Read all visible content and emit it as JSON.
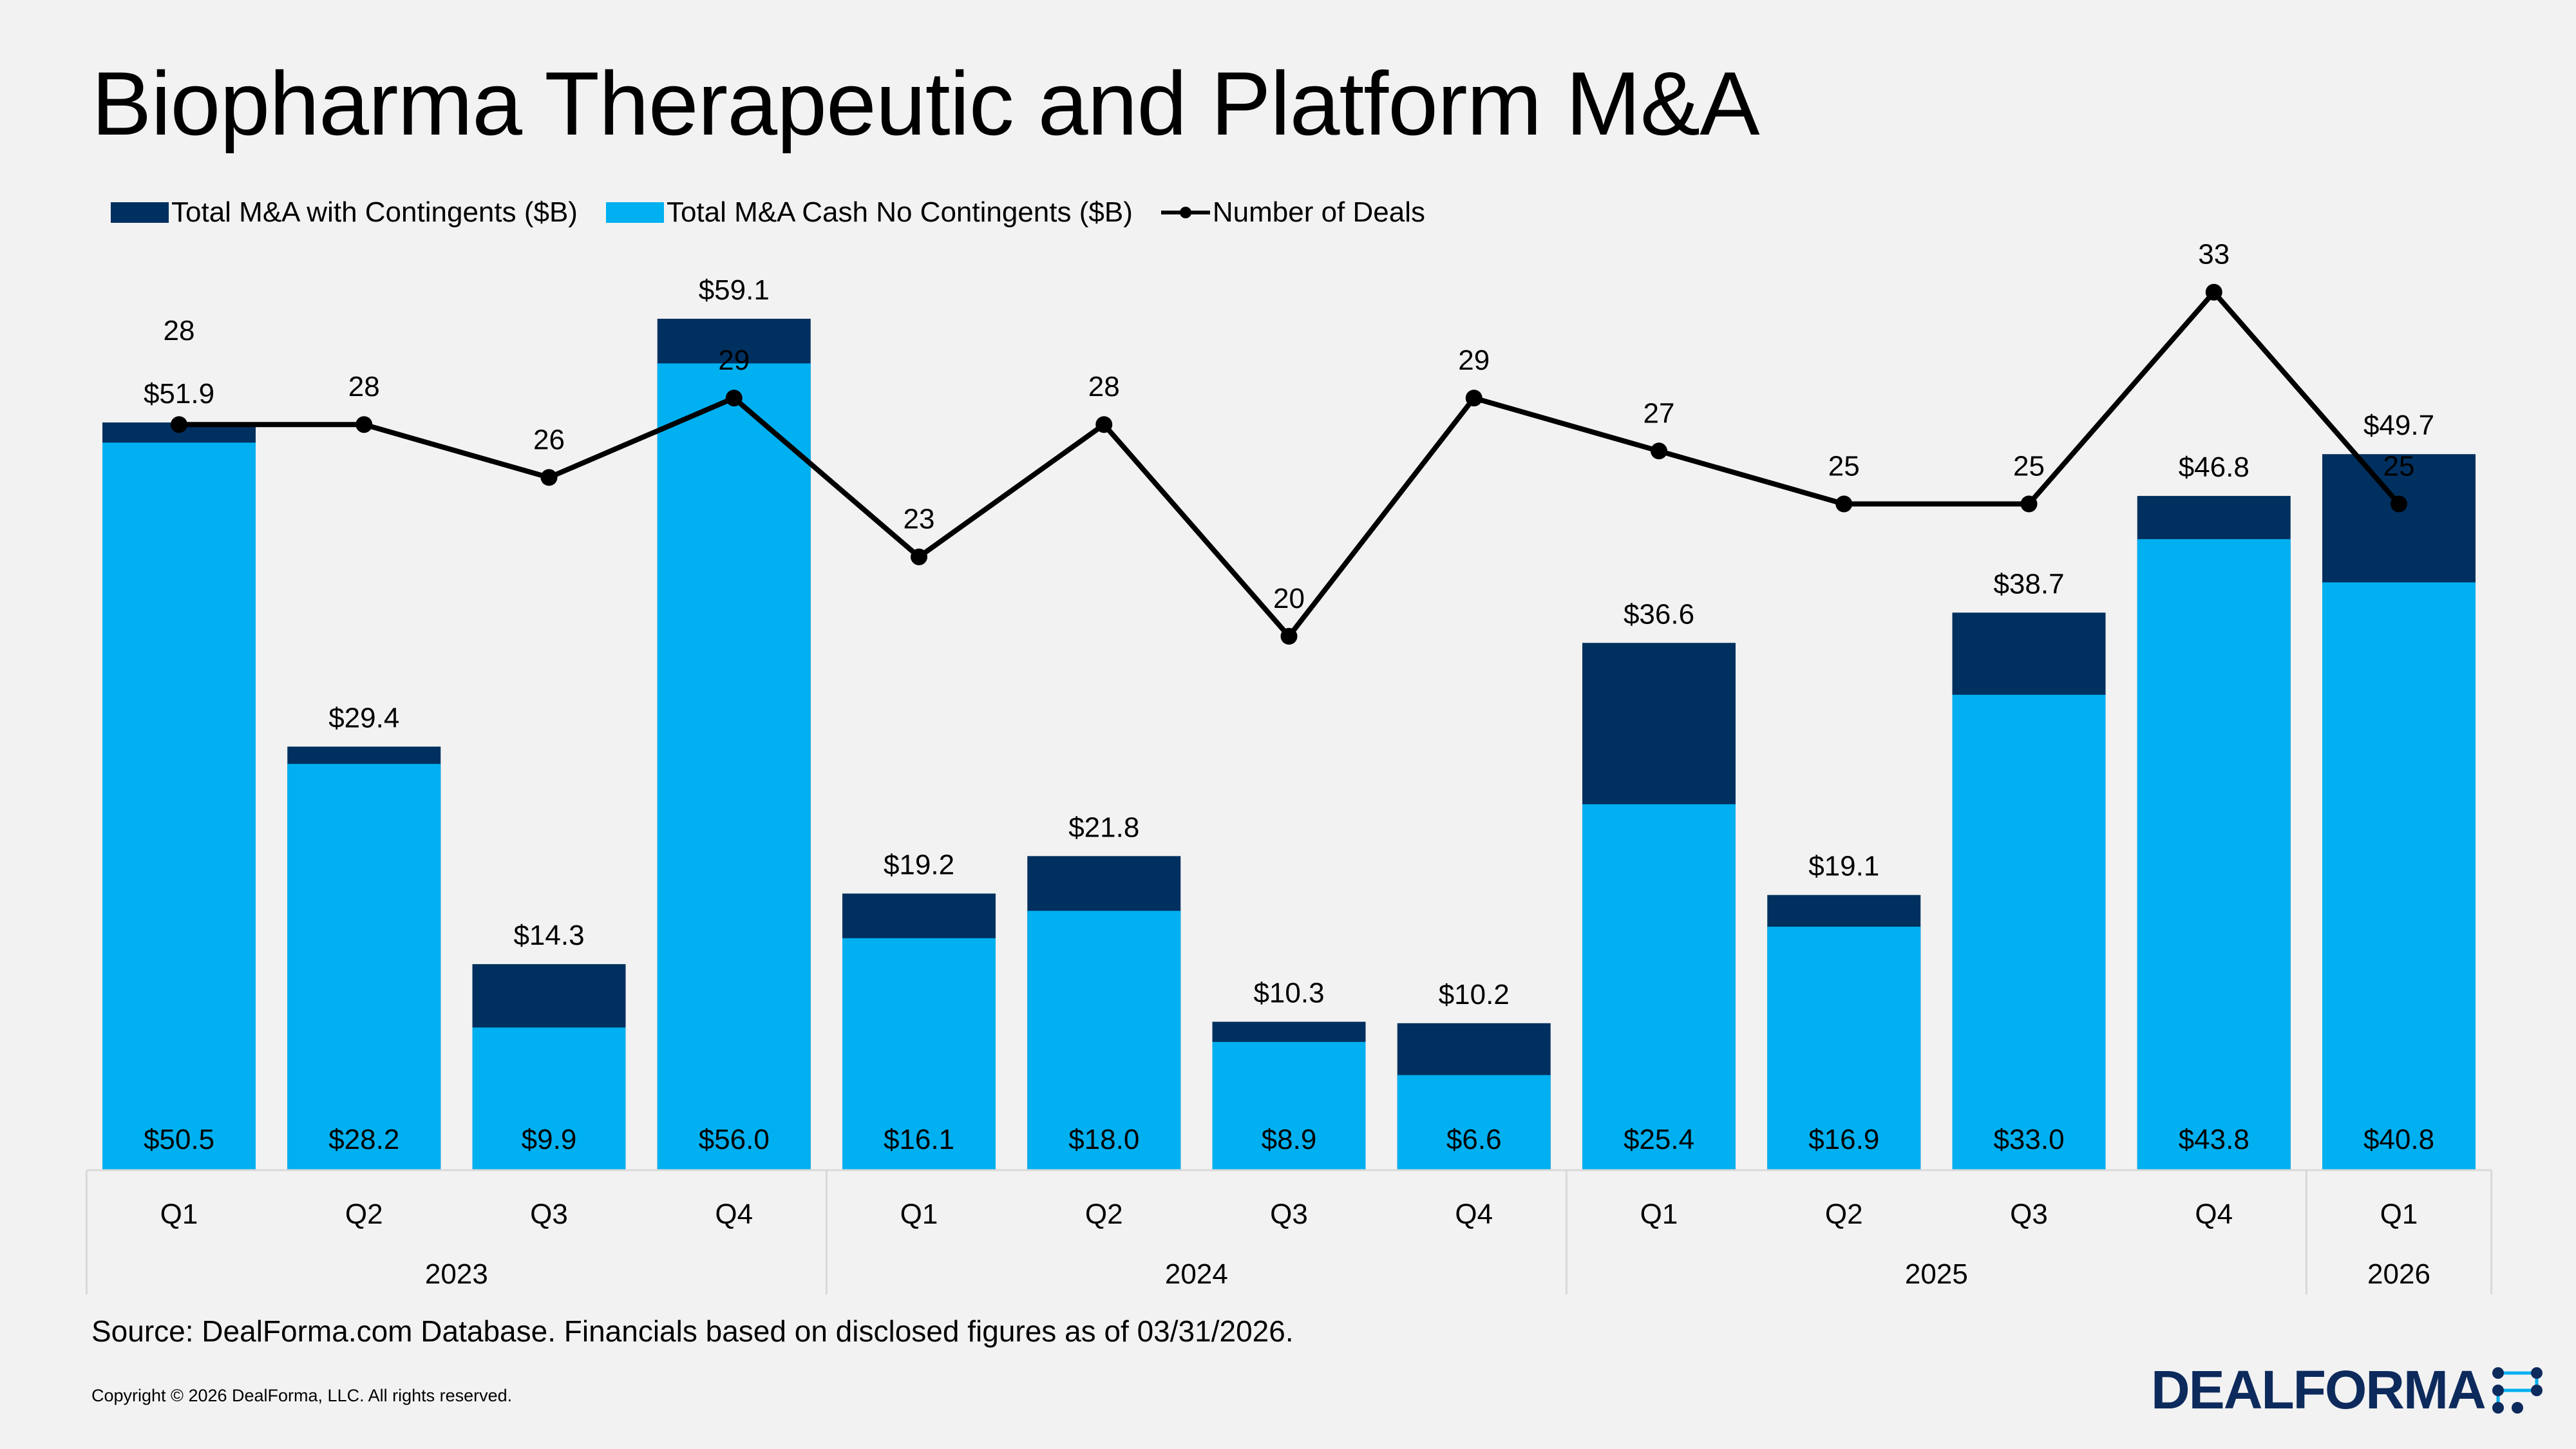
{
  "title": "Biopharma Therapeutic and Platform M&A",
  "legend": {
    "total_with_contingents": "Total M&A with Contingents ($B)",
    "cash_no_contingents": "Total M&A Cash No Contingents ($B)",
    "number_of_deals": "Number of Deals"
  },
  "colors": {
    "total_with_contingents": "#00305f",
    "cash_no_contingents": "#00b0f0",
    "number_of_deals": "#000000",
    "axis": "#d9d9d9"
  },
  "chart_data": {
    "type": "bar",
    "stacked": true,
    "categories": [
      "Q1",
      "Q2",
      "Q3",
      "Q4",
      "Q1",
      "Q2",
      "Q3",
      "Q4",
      "Q1",
      "Q2",
      "Q3",
      "Q4",
      "Q1"
    ],
    "years": [
      {
        "label": "2023",
        "quarters": 4
      },
      {
        "label": "2024",
        "quarters": 4
      },
      {
        "label": "2025",
        "quarters": 4
      },
      {
        "label": "2026",
        "quarters": 1
      }
    ],
    "series": [
      {
        "name": "Total M&A with Contingents ($B)",
        "values": [
          51.9,
          29.4,
          14.3,
          59.1,
          19.2,
          21.8,
          10.3,
          10.2,
          36.6,
          19.1,
          38.7,
          46.8,
          49.7
        ],
        "labels": [
          "$51.9",
          "$29.4",
          "$14.3",
          "$59.1",
          "$19.2",
          "$21.8",
          "$10.3",
          "$10.2",
          "$36.6",
          "$19.1",
          "$38.7",
          "$46.8",
          "$49.7"
        ]
      },
      {
        "name": "Total M&A Cash No Contingents ($B)",
        "values": [
          50.5,
          28.2,
          9.9,
          56.0,
          16.1,
          18.0,
          8.9,
          6.6,
          25.4,
          16.9,
          33.0,
          43.8,
          40.8
        ],
        "labels": [
          "$50.5",
          "$28.2",
          "$9.9",
          "$56.0",
          "$16.1",
          "$18.0",
          "$8.9",
          "$6.6",
          "$25.4",
          "$16.9",
          "$33.0",
          "$43.8",
          "$40.8"
        ]
      },
      {
        "name": "Number of Deals",
        "type": "line",
        "values": [
          28,
          28,
          26,
          29,
          23,
          28,
          20,
          29,
          27,
          25,
          25,
          33,
          25
        ]
      }
    ],
    "ylim_usd": [
      0,
      60
    ],
    "ylim_deals": [
      0,
      33
    ],
    "legend_position": "top-left",
    "grid": false
  },
  "footer": {
    "source": "Source: DealForma.com Database. Financials based on disclosed figures as of 03/31/2026.",
    "copyright": "Copyright © 2026 DealForma, LLC. All rights reserved.",
    "brand": "DEALFORMA"
  }
}
